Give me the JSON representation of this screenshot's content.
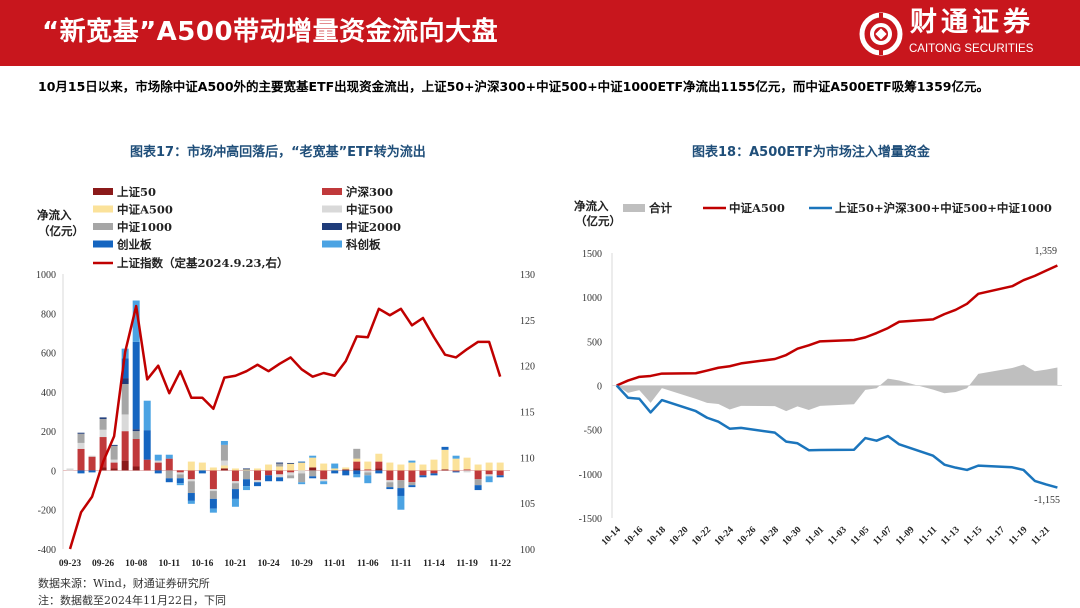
{
  "header": {
    "title": "“新宽基”A500带动增量资金流向大盘",
    "logo_cn": "财通证券",
    "logo_en": "CAITONG SECURITIES",
    "brand_color": "#C8161D"
  },
  "summary": "10月15日以来，市场除中证A500外的主要宽基ETF出现资金流出，上证50+沪深300+中证500+中证1000ETF净流出1155亿元，而中证A500ETF吸筹1359亿元。",
  "footer": {
    "source": "数据来源：Wind，财通证券研究所",
    "note": "注：数据截至2024年11月22日，下同"
  },
  "chart_data": [
    {
      "type": "bar",
      "stacked": true,
      "title": "图表17：市场冲高回落后，“老宽基”ETF转为流出",
      "ylabel": "净流入\n（亿元）",
      "ylabel_line1": "净流入",
      "ylabel_line2": "（亿元）",
      "ylim": [
        -400,
        1000
      ],
      "yticks": [
        "1000",
        "800",
        "600",
        "400",
        "200",
        "0",
        "-200",
        "-400"
      ],
      "y2lim": [
        100,
        130
      ],
      "y2ticks": [
        "130",
        "125",
        "120",
        "115",
        "110",
        "105",
        "100"
      ],
      "legend_position": "top",
      "categories": [
        "09-23",
        "09-24",
        "09-25",
        "09-26",
        "09-27",
        "09-30",
        "10-08",
        "10-09",
        "10-10",
        "10-11",
        "10-14",
        "10-15",
        "10-16",
        "10-17",
        "10-18",
        "10-21",
        "10-22",
        "10-23",
        "10-24",
        "10-25",
        "10-28",
        "10-29",
        "10-30",
        "10-31",
        "11-01",
        "11-04",
        "11-05",
        "11-06",
        "11-07",
        "11-08",
        "11-11",
        "11-12",
        "11-13",
        "11-14",
        "11-15",
        "11-18",
        "11-19",
        "11-20",
        "11-21",
        "11-22"
      ],
      "xtick_labels": [
        "09-23",
        "09-26",
        "10-08",
        "10-11",
        "10-16",
        "10-21",
        "10-24",
        "10-29",
        "11-01",
        "11-06",
        "11-11",
        "11-14",
        "11-19",
        "11-22"
      ],
      "series": [
        {
          "name": "上证50",
          "color": "#8B1A1A",
          "values": [
            0,
            0,
            0,
            15,
            10,
            50,
            20,
            0,
            0,
            0,
            0,
            0,
            0,
            0,
            10,
            0,
            0,
            0,
            0,
            0,
            0,
            0,
            15,
            0,
            0,
            5,
            10,
            0,
            10,
            0,
            0,
            0,
            0,
            0,
            5,
            0,
            0,
            0,
            0,
            0
          ]
        },
        {
          "name": "沪深300",
          "color": "#C0393B",
          "values": [
            0,
            110,
            70,
            155,
            30,
            150,
            140,
            55,
            40,
            60,
            -10,
            -45,
            0,
            -95,
            0,
            -55,
            0,
            -50,
            -25,
            -20,
            -10,
            0,
            0,
            -45,
            0,
            0,
            35,
            5,
            35,
            -50,
            -50,
            -60,
            -25,
            -15,
            0,
            -5,
            5,
            -45,
            -20,
            -25
          ]
        },
        {
          "name": "中证A500",
          "color": "#FBE29A",
          "values": [
            0,
            0,
            0,
            0,
            0,
            0,
            0,
            0,
            0,
            0,
            0,
            45,
            40,
            15,
            15,
            10,
            5,
            10,
            30,
            20,
            35,
            40,
            50,
            35,
            10,
            10,
            15,
            40,
            40,
            40,
            30,
            40,
            30,
            55,
            100,
            60,
            60,
            30,
            40,
            40
          ]
        },
        {
          "name": "中证500",
          "color": "#D9D9D9",
          "values": [
            10,
            30,
            5,
            37,
            15,
            85,
            0,
            0,
            10,
            0,
            -10,
            -10,
            0,
            -10,
            25,
            -10,
            0,
            -10,
            0,
            -15,
            -15,
            -15,
            0,
            -10,
            0,
            0,
            0,
            -10,
            0,
            -10,
            0,
            0,
            0,
            0,
            0,
            0,
            -10,
            0,
            -10,
            0
          ]
        },
        {
          "name": "中证1000",
          "color": "#A6A6A6",
          "values": [
            0,
            47,
            0,
            55,
            70,
            155,
            40,
            0,
            0,
            -40,
            -20,
            -60,
            0,
            -40,
            80,
            -30,
            -45,
            0,
            0,
            15,
            -15,
            -45,
            -30,
            0,
            0,
            0,
            50,
            -15,
            0,
            -25,
            -40,
            -15,
            0,
            0,
            0,
            0,
            0,
            -30,
            0,
            0
          ]
        },
        {
          "name": "中证2000",
          "color": "#1F3C7A",
          "values": [
            0,
            5,
            0,
            8,
            5,
            30,
            10,
            0,
            0,
            0,
            0,
            0,
            0,
            0,
            0,
            0,
            5,
            0,
            0,
            5,
            3,
            0,
            0,
            0,
            0,
            0,
            0,
            0,
            0,
            0,
            0,
            0,
            0,
            0,
            0,
            0,
            0,
            0,
            0,
            0
          ]
        },
        {
          "name": "创业板",
          "color": "#1565C0",
          "values": [
            0,
            -15,
            -10,
            0,
            0,
            100,
            445,
            150,
            -15,
            -20,
            -25,
            -40,
            -15,
            -50,
            0,
            -50,
            -35,
            -20,
            -30,
            -20,
            0,
            5,
            -10,
            0,
            -15,
            -25,
            -20,
            0,
            -15,
            -10,
            -40,
            -10,
            -10,
            -10,
            15,
            -5,
            0,
            -25,
            0,
            -10
          ]
        },
        {
          "name": "科创板",
          "color": "#4BA3E3",
          "values": [
            0,
            0,
            0,
            0,
            0,
            50,
            210,
            150,
            30,
            20,
            -10,
            -15,
            0,
            -20,
            20,
            -40,
            -20,
            0,
            0,
            0,
            0,
            -10,
            10,
            -15,
            25,
            0,
            -15,
            -40,
            0,
            0,
            -70,
            10,
            0,
            0,
            0,
            15,
            0,
            0,
            -30,
            0
          ]
        }
      ],
      "line_series": {
        "name": "上证指数（定基2024.9.23,右）",
        "color": "#C00000",
        "axis": "right",
        "values": [
          100,
          104,
          105.7,
          109.5,
          112.3,
          121.5,
          126.5,
          118.5,
          120,
          117,
          119.4,
          116.5,
          116.5,
          115.3,
          118.7,
          118.9,
          119.4,
          120.1,
          119.4,
          120.2,
          120.9,
          119.6,
          118.8,
          119.2,
          118.9,
          120.5,
          123.2,
          123.1,
          126.2,
          125.5,
          126.2,
          124.4,
          125.2,
          123.1,
          121.2,
          120.9,
          121.8,
          122.6,
          122.6,
          118.8
        ]
      }
    },
    {
      "type": "line",
      "title": "图表18：A500ETF为市场注入增量资金",
      "ylabel_line1": "净流入",
      "ylabel_line2": "（亿元）",
      "ylim": [
        -1500,
        1500
      ],
      "yticks": [
        "1500",
        "1000",
        "500",
        "0",
        "-500",
        "-1000",
        "-1500"
      ],
      "legend_position": "top",
      "x": [
        "10-14",
        "10-15",
        "10-16",
        "10-17",
        "10-18",
        "10-21",
        "10-22",
        "10-23",
        "10-24",
        "10-25",
        "10-28",
        "10-29",
        "10-30",
        "10-31",
        "11-01",
        "11-04",
        "11-05",
        "11-06",
        "11-07",
        "11-08",
        "11-11",
        "11-12",
        "11-13",
        "11-14",
        "11-15",
        "11-18",
        "11-19",
        "11-20",
        "11-21",
        "11-22"
      ],
      "xtick_labels": [
        "10-14",
        "10-16",
        "10-18",
        "10-20",
        "10-22",
        "10-24",
        "10-26",
        "10-28",
        "10-30",
        "11-01",
        "11-03",
        "11-05",
        "11-07",
        "11-09",
        "11-11",
        "11-13",
        "11-15",
        "11-17",
        "11-19",
        "11-21"
      ],
      "series": [
        {
          "name": "合计",
          "type": "area",
          "color": "#BFBFBF",
          "values": [
            0,
            -83,
            -52,
            -197,
            -30,
            -151,
            -196,
            -209,
            -271,
            -230,
            -234,
            -290,
            -237,
            -278,
            -230,
            -212,
            -50,
            -31,
            78,
            56,
            -47,
            -88,
            -73,
            -31,
            131,
            198,
            236,
            161,
            180,
            204
          ]
        },
        {
          "name": "中证A500",
          "type": "line",
          "color": "#C00000",
          "values": [
            0,
            56,
            98,
            108,
            135,
            139,
            169,
            201,
            218,
            250,
            300,
            345,
            417,
            455,
            500,
            515,
            545,
            594,
            650,
            722,
            748,
            808,
            857,
            925,
            1038,
            1124,
            1192,
            1241,
            1300,
            1359
          ]
        },
        {
          "name": "上证50+沪深300+中证500+中证1000",
          "type": "line",
          "color": "#1B75BC",
          "values": [
            0,
            -139,
            -150,
            -305,
            -165,
            -290,
            -365,
            -410,
            -489,
            -480,
            -534,
            -635,
            -654,
            -733,
            -730,
            -727,
            -595,
            -625,
            -572,
            -666,
            -795,
            -896,
            -930,
            -956,
            -907,
            -926,
            -956,
            -1080,
            -1120,
            -1155
          ]
        }
      ],
      "data_labels": {
        "last_a500": "1,359",
        "last_others": "-1,155"
      }
    }
  ]
}
